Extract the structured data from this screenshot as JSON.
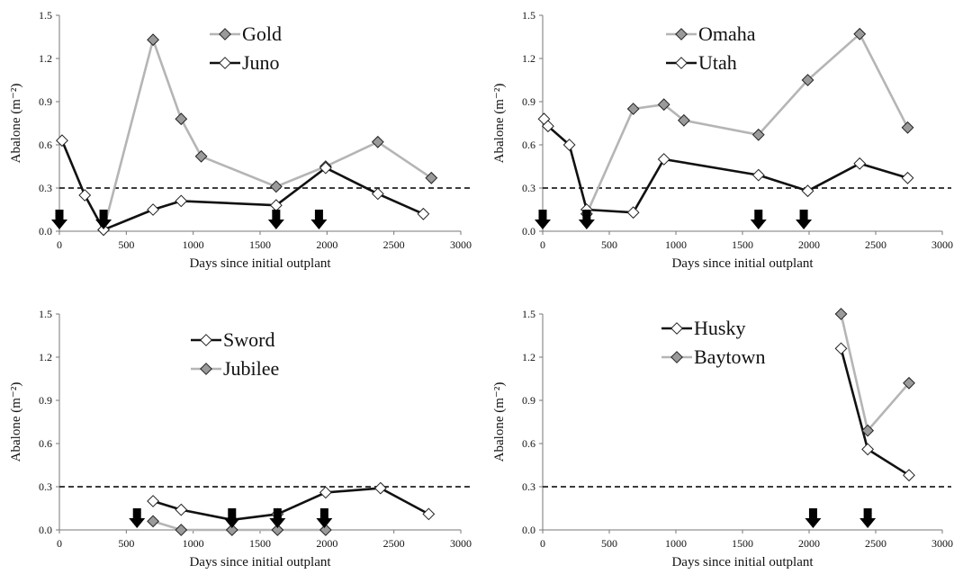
{
  "chart_data": [
    {
      "type": "line",
      "xlabel": "Days since initial  outplant",
      "ylabel": "Abalone (m⁻²)",
      "xlim": [
        0,
        3000
      ],
      "ylim": [
        0,
        1.5
      ],
      "xticks": [
        "0",
        "500",
        "1000",
        "1500",
        "2000",
        "2500",
        "3000"
      ],
      "yticks": [
        "0.0",
        "0.3",
        "0.6",
        "0.9",
        "1.2",
        "1.5"
      ],
      "threshold": 0.3,
      "legend_position": "top-center",
      "arrows_x": [
        0,
        330,
        1620,
        1940
      ],
      "series": [
        {
          "name": "Gold",
          "color": "#b5b5b5",
          "marker_fill": "#9a9a9a",
          "x": [
            330,
            700,
            910,
            1060,
            1620,
            1990,
            2380,
            2780
          ],
          "y": [
            0.01,
            1.33,
            0.78,
            0.52,
            0.31,
            0.45,
            0.62,
            0.37
          ]
        },
        {
          "name": "Juno",
          "color": "#111111",
          "marker_fill": "#ffffff",
          "x": [
            20,
            190,
            330,
            700,
            910,
            1620,
            1990,
            2380,
            2720
          ],
          "y": [
            0.63,
            0.25,
            0.01,
            0.15,
            0.21,
            0.18,
            0.44,
            0.26,
            0.12
          ]
        }
      ]
    },
    {
      "type": "line",
      "xlabel": "Days since initial  outplant",
      "ylabel": "Abalone (m⁻²)",
      "xlim": [
        0,
        3000
      ],
      "ylim": [
        0,
        1.5
      ],
      "xticks": [
        "0",
        "500",
        "1000",
        "1500",
        "2000",
        "2500",
        "3000"
      ],
      "yticks": [
        "0.0",
        "0.3",
        "0.6",
        "0.9",
        "1.2",
        "1.5"
      ],
      "threshold": 0.3,
      "legend_position": "top-center",
      "arrows_x": [
        0,
        330,
        1620,
        1960
      ],
      "series": [
        {
          "name": "Omaha",
          "color": "#b5b5b5",
          "marker_fill": "#9a9a9a",
          "x": [
            330,
            680,
            910,
            1060,
            1620,
            1990,
            2380,
            2740
          ],
          "y": [
            0.12,
            0.85,
            0.88,
            0.77,
            0.67,
            1.05,
            1.37,
            0.72
          ]
        },
        {
          "name": "Utah",
          "color": "#111111",
          "marker_fill": "#ffffff",
          "x": [
            10,
            40,
            200,
            330,
            680,
            910,
            1620,
            1990,
            2380,
            2740
          ],
          "y": [
            0.78,
            0.73,
            0.6,
            0.15,
            0.13,
            0.5,
            0.39,
            0.28,
            0.47,
            0.37
          ]
        }
      ]
    },
    {
      "type": "line",
      "xlabel": "Days since initial  outplant",
      "ylabel": "Abalone (m⁻²)",
      "xlim": [
        0,
        3000
      ],
      "ylim": [
        0,
        1.5
      ],
      "xticks": [
        "0",
        "500",
        "1000",
        "1500",
        "2000",
        "2500",
        "3000"
      ],
      "yticks": [
        "0.0",
        "0.3",
        "0.6",
        "0.9",
        "1.2",
        "1.5"
      ],
      "threshold": 0.3,
      "legend_position": "top-center",
      "arrows_x": [
        580,
        1290,
        1630,
        1980
      ],
      "series": [
        {
          "name": "Sword",
          "color": "#111111",
          "marker_fill": "#ffffff",
          "x": [
            700,
            910,
            1290,
            1630,
            1990,
            2400,
            2760
          ],
          "y": [
            0.2,
            0.14,
            0.07,
            0.11,
            0.26,
            0.29,
            0.11
          ]
        },
        {
          "name": "Jubilee",
          "color": "#b5b5b5",
          "marker_fill": "#9a9a9a",
          "x": [
            700,
            910,
            1290,
            1630,
            1990
          ],
          "y": [
            0.06,
            0.0,
            0.0,
            0.0,
            0.0
          ]
        }
      ]
    },
    {
      "type": "line",
      "xlabel": "Days since initial  outplant",
      "ylabel": "Abalone (m⁻²)",
      "xlim": [
        0,
        3000
      ],
      "ylim": [
        0,
        1.5
      ],
      "xticks": [
        "0",
        "500",
        "1000",
        "1500",
        "2000",
        "2500",
        "3000"
      ],
      "yticks": [
        "0.0",
        "0.3",
        "0.6",
        "0.9",
        "1.2",
        "1.5"
      ],
      "threshold": 0.3,
      "legend_position": "top-center",
      "arrows_x": [
        2030,
        2440
      ],
      "series": [
        {
          "name": "Husky",
          "color": "#111111",
          "marker_fill": "#ffffff",
          "x": [
            2240,
            2440,
            2750
          ],
          "y": [
            1.26,
            0.56,
            0.38
          ]
        },
        {
          "name": "Baytown",
          "color": "#b5b5b5",
          "marker_fill": "#9a9a9a",
          "x": [
            2240,
            2440,
            2750
          ],
          "y": [
            1.5,
            0.69,
            1.02
          ]
        }
      ]
    }
  ]
}
